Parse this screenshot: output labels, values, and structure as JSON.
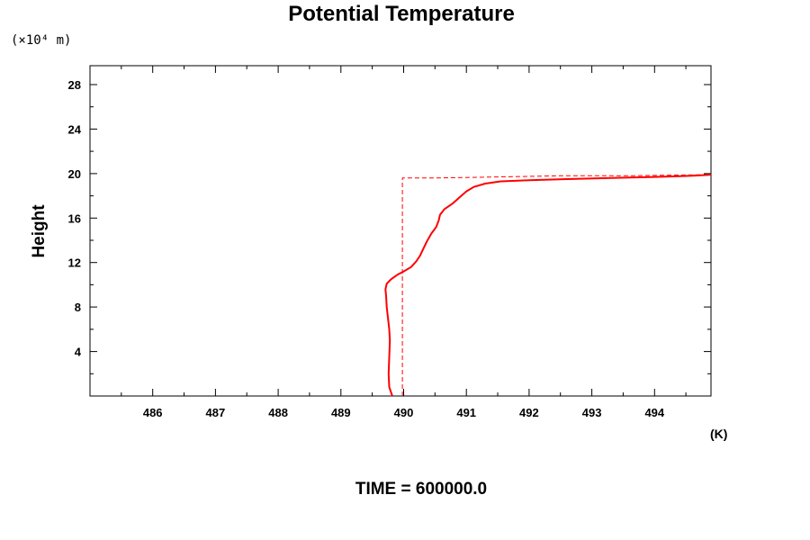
{
  "chart_data": {
    "type": "line",
    "title": "Potential Temperature",
    "ylabel": "Height",
    "y_scale_label": "(×10⁴ m)",
    "x_unit_label": "(K)",
    "xlim": [
      485.0,
      494.9
    ],
    "ylim": [
      0.0,
      29.7
    ],
    "x_ticks": [
      486,
      487,
      488,
      489,
      490,
      491,
      492,
      493,
      494
    ],
    "x_tick_labels": [
      "486",
      "487",
      "488",
      "489",
      "490",
      "491",
      "492",
      "493",
      "494"
    ],
    "y_ticks": [
      4,
      8,
      12,
      16,
      20,
      24,
      28
    ],
    "y_tick_labels": [
      "4",
      "8",
      "12",
      "16",
      "20",
      "24",
      "28"
    ],
    "grid": false,
    "line_color": "#ff0000",
    "series": [
      {
        "style": "solid",
        "points": [
          [
            489.82,
            0.0
          ],
          [
            489.77,
            0.8
          ],
          [
            489.76,
            2.0
          ],
          [
            489.77,
            3.5
          ],
          [
            489.78,
            5.0
          ],
          [
            489.77,
            6.0
          ],
          [
            489.75,
            7.0
          ],
          [
            489.73,
            8.0
          ],
          [
            489.72,
            9.0
          ],
          [
            489.71,
            9.6
          ],
          [
            489.73,
            10.1
          ],
          [
            489.8,
            10.5
          ],
          [
            489.9,
            10.9
          ],
          [
            490.0,
            11.2
          ],
          [
            490.12,
            11.6
          ],
          [
            490.2,
            12.1
          ],
          [
            490.26,
            12.6
          ],
          [
            490.31,
            13.2
          ],
          [
            490.37,
            13.9
          ],
          [
            490.44,
            14.6
          ],
          [
            490.52,
            15.2
          ],
          [
            490.56,
            15.8
          ],
          [
            490.58,
            16.3
          ],
          [
            490.65,
            16.8
          ],
          [
            490.78,
            17.3
          ],
          [
            490.9,
            17.9
          ],
          [
            491.0,
            18.4
          ],
          [
            491.12,
            18.8
          ],
          [
            491.3,
            19.1
          ],
          [
            491.55,
            19.3
          ],
          [
            492.0,
            19.4
          ],
          [
            492.6,
            19.5
          ],
          [
            493.3,
            19.6
          ],
          [
            494.0,
            19.7
          ],
          [
            494.6,
            19.8
          ],
          [
            494.9,
            19.9
          ]
        ]
      },
      {
        "style": "dashed",
        "points": [
          [
            489.98,
            0.0
          ],
          [
            489.98,
            19.6
          ],
          [
            490.5,
            19.6
          ],
          [
            491.5,
            19.7
          ],
          [
            492.5,
            19.8
          ],
          [
            493.5,
            19.8
          ],
          [
            494.9,
            19.9
          ]
        ]
      }
    ],
    "footer": "TIME = 600000.0"
  }
}
